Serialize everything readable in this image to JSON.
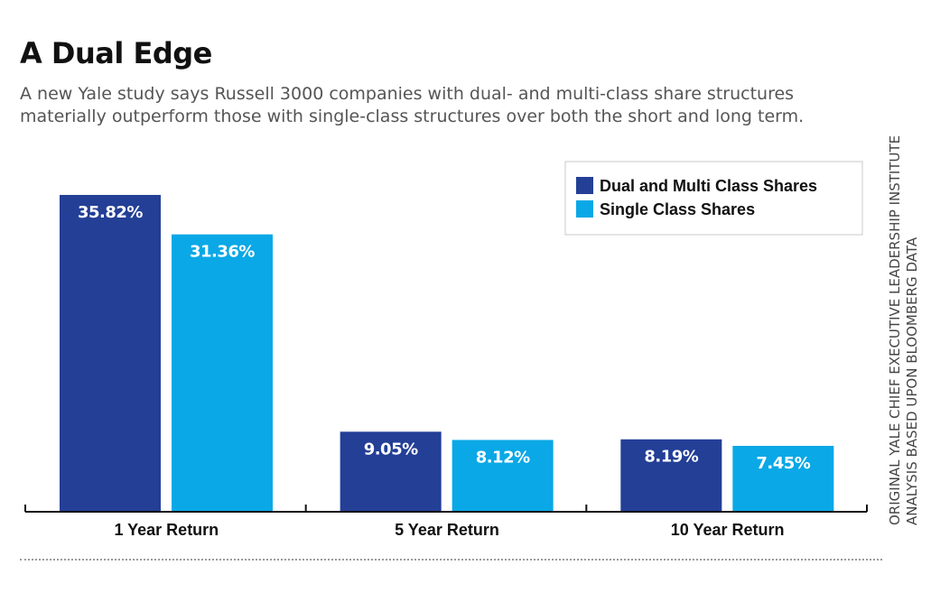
{
  "page": {
    "title": "A Dual Edge",
    "subtitle_lines": [
      "A new Yale study says Russell 3000 companies with dual- and multi-class share structures",
      "materially outperform those with single-class structures over both the short and long term."
    ],
    "source_lines": [
      "ORIGINAL YALE CHIEF EXECUTIVE LEADERSHIP INSTITUTE",
      "ANALYSIS BASED UPON BLOOMBERG DATA"
    ]
  },
  "chart_data": {
    "type": "bar",
    "categories": [
      "1 Year Return",
      "5 Year Return",
      "10 Year Return"
    ],
    "series": [
      {
        "name": "Dual and Multi Class Shares",
        "values": [
          35.82,
          9.05,
          8.19
        ],
        "labels": [
          "35.82%",
          "9.05%",
          "8.19%"
        ],
        "color": "#233f96"
      },
      {
        "name": "Single Class Shares",
        "values": [
          31.36,
          8.12,
          7.45
        ],
        "labels": [
          "31.36%",
          "8.12%",
          "7.45%"
        ],
        "color": "#0aa8e6"
      }
    ],
    "ylim": [
      0,
      40
    ],
    "grid": false,
    "legend": "top-right",
    "label_color": "#ffffff"
  }
}
